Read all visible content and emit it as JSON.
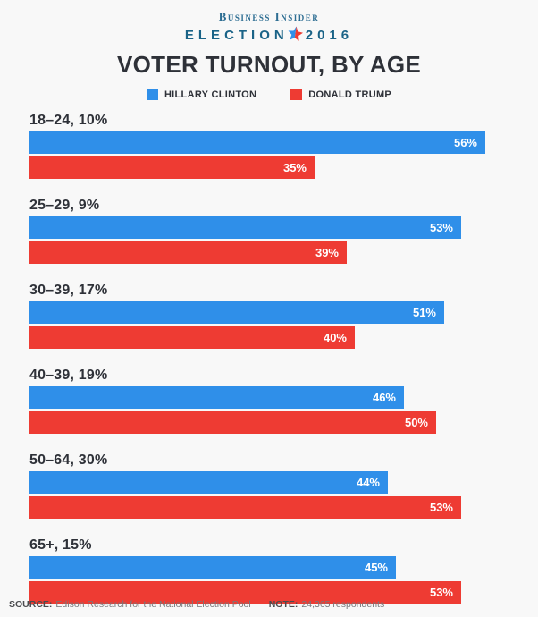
{
  "header": {
    "brand": "Business Insider",
    "election_word": "ELECTION",
    "election_year": "2016",
    "title": "VOTER TURNOUT, BY AGE"
  },
  "legend": {
    "items": [
      {
        "label": "HILLARY CLINTON",
        "color": "#2f8fe9"
      },
      {
        "label": "DONALD TRUMP",
        "color": "#ee3b33"
      }
    ]
  },
  "chart_data": {
    "type": "bar",
    "orientation": "horizontal",
    "title": "VOTER TURNOUT, BY AGE",
    "categories": [
      "18–24, 10%",
      "25–29, 9%",
      "30–39, 17%",
      "40–39, 19%",
      "50–64, 30%",
      "65+, 15%"
    ],
    "series": [
      {
        "name": "Hillary Clinton",
        "color": "#2f8fe9",
        "values": [
          56,
          53,
          51,
          46,
          44,
          45
        ]
      },
      {
        "name": "Donald Trump",
        "color": "#ee3b33",
        "values": [
          35,
          39,
          40,
          50,
          53,
          53
        ]
      }
    ],
    "value_suffix": "%",
    "xlim": [
      0,
      56
    ],
    "grid": false,
    "legend_position": "top",
    "value_labels": "inside-end"
  },
  "footer": {
    "source_label": "SOURCE:",
    "source_text": "Edison Research for the National Election Pool",
    "note_label": "NOTE:",
    "note_text": "24,365 respondents"
  },
  "colors": {
    "background": "#f8f8f8",
    "clinton_blue": "#2f8fe9",
    "trump_red": "#ee3b33",
    "brand_blue": "#2e6e93",
    "election_teal": "#1a6387",
    "title_dark": "#2e3138"
  }
}
